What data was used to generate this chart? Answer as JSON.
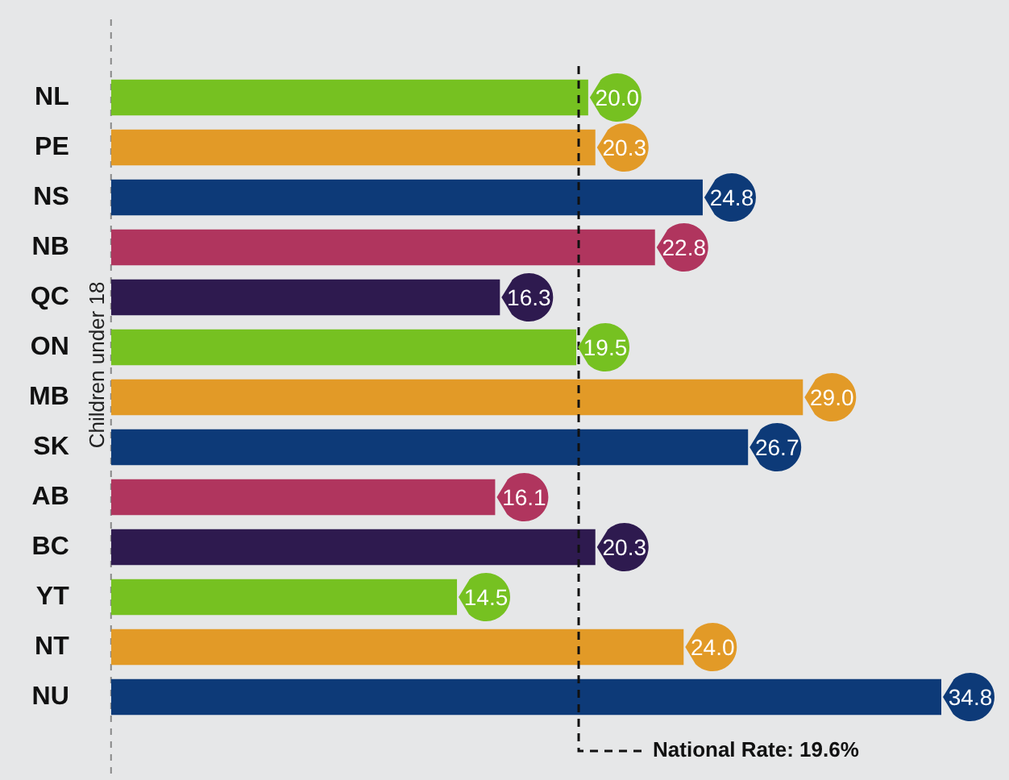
{
  "chart_data": {
    "type": "bar",
    "orientation": "horizontal",
    "ylabel": "Children under 18",
    "categories": [
      "NL",
      "PE",
      "NS",
      "NB",
      "QC",
      "ON",
      "MB",
      "SK",
      "AB",
      "BC",
      "YT",
      "NT",
      "NU"
    ],
    "values": [
      20.0,
      20.3,
      24.8,
      22.8,
      16.3,
      19.5,
      29.0,
      26.7,
      16.1,
      20.3,
      14.5,
      24.0,
      34.8
    ],
    "colors": [
      "#76c121",
      "#e29a27",
      "#0d3a78",
      "#b0355e",
      "#2e1a4f",
      "#76c121",
      "#e29a27",
      "#0d3a78",
      "#b0355e",
      "#2e1a4f",
      "#76c121",
      "#e29a27",
      "#0d3a78"
    ],
    "value_labels": [
      "20.0",
      "20.3",
      "24.8",
      "22.8",
      "16.3",
      "19.5",
      "29.0",
      "26.7",
      "16.1",
      "20.3",
      "14.5",
      "24.0",
      "34.8"
    ],
    "ref_lines": [
      {
        "axis": "x",
        "value": 19.6,
        "label": "National Rate: 19.6%",
        "line_style": "dashed",
        "color": "#111111"
      }
    ],
    "grid": false,
    "legend": false
  }
}
